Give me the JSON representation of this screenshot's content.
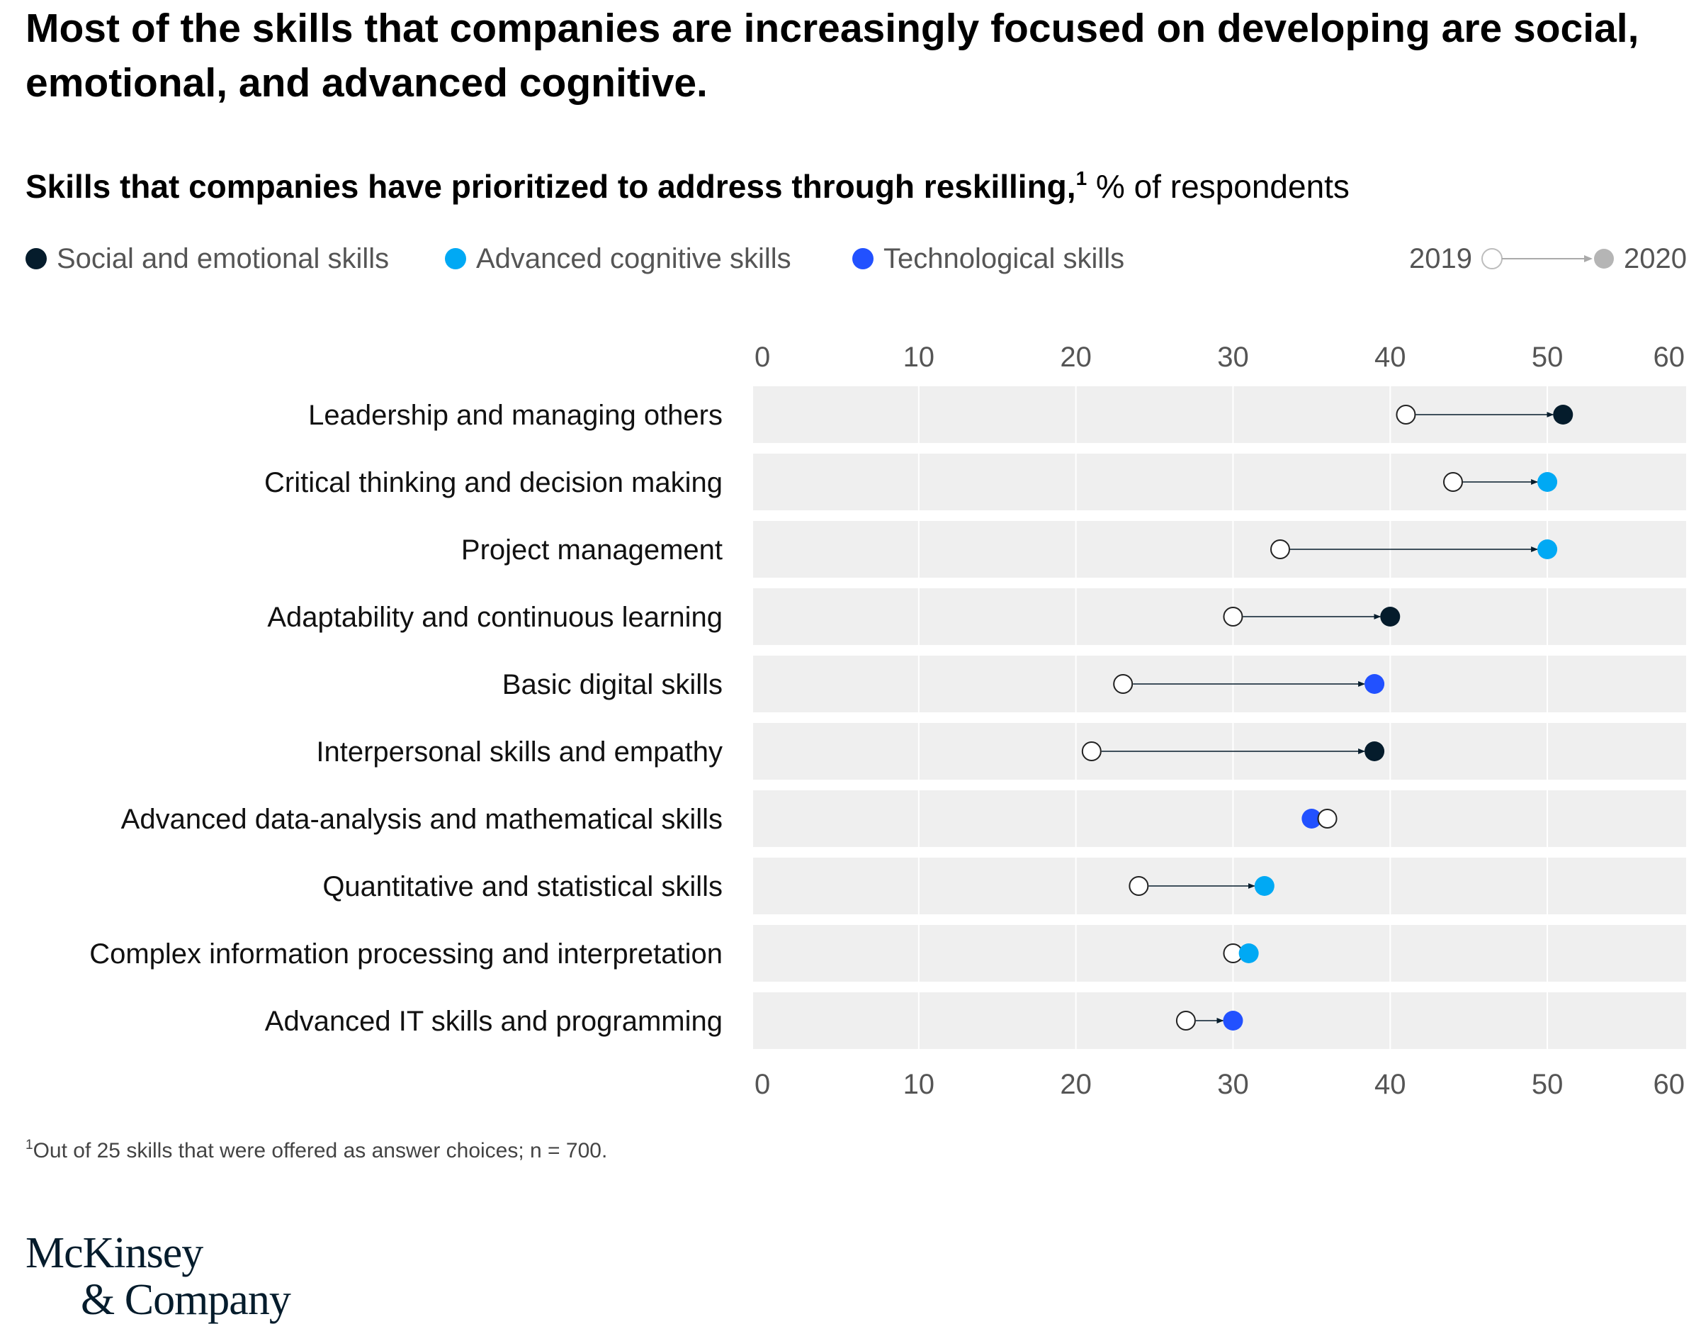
{
  "title": "Most of the skills that companies are increasingly focused on developing are social, emotional, and advanced cognitive.",
  "subtitle": {
    "bold": "Skills that companies have prioritized to address through reskilling,",
    "footnote_marker": "1",
    "regular": " % of respondents"
  },
  "legend": {
    "categories": [
      {
        "label": "Social and emotional skills",
        "color": "#051c2c"
      },
      {
        "label": "Advanced cognitive skills",
        "color": "#00a9f4"
      },
      {
        "label": "Technological skills",
        "color": "#2251ff"
      }
    ],
    "year_from": "2019",
    "year_to": "2020"
  },
  "chart_data": {
    "type": "dumbbell",
    "xlim": [
      0,
      60
    ],
    "ticks": [
      "0",
      "10",
      "20",
      "30",
      "40",
      "50",
      "60"
    ],
    "tick_values": [
      0,
      10,
      20,
      30,
      40,
      50,
      60
    ],
    "series_names": [
      "2019",
      "2020"
    ],
    "rows": [
      {
        "label": "Leadership and managing others",
        "v2019": 41,
        "v2020": 51,
        "category": 0
      },
      {
        "label": "Critical thinking and decision making",
        "v2019": 44,
        "v2020": 50,
        "category": 1
      },
      {
        "label": "Project management",
        "v2019": 33,
        "v2020": 50,
        "category": 1
      },
      {
        "label": "Adaptability and continuous learning",
        "v2019": 30,
        "v2020": 40,
        "category": 0
      },
      {
        "label": "Basic digital skills",
        "v2019": 23,
        "v2020": 39,
        "category": 2
      },
      {
        "label": "Interpersonal skills and empathy",
        "v2019": 21,
        "v2020": 39,
        "category": 0
      },
      {
        "label": "Advanced data-analysis and mathematical skills",
        "v2019": 36,
        "v2020": 35,
        "category": 2
      },
      {
        "label": "Quantitative and statistical skills",
        "v2019": 24,
        "v2020": 32,
        "category": 1
      },
      {
        "label": "Complex information processing and interpretation",
        "v2019": 30,
        "v2020": 31,
        "category": 1
      },
      {
        "label": "Advanced IT skills and programming",
        "v2019": 27,
        "v2020": 30,
        "category": 2
      }
    ]
  },
  "footnote": {
    "marker": "1",
    "text": "Out of 25 skills that were offered as answer choices; n = 700."
  },
  "logo": {
    "line1": "McKinsey",
    "line2": "& Company"
  }
}
